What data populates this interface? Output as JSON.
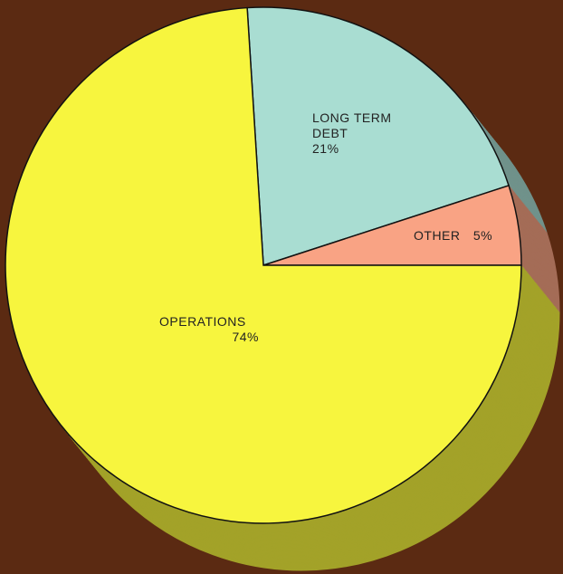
{
  "chart_data": {
    "type": "pie",
    "categories": [
      "LONG TERM DEBT",
      "OTHER",
      "OPERATIONS"
    ],
    "values": [
      21,
      5,
      74
    ],
    "value_labels": [
      "21%",
      "5%",
      "74%"
    ],
    "colors": [
      "#a9ddd2",
      "#f9a384",
      "#f7f53e"
    ]
  }
}
